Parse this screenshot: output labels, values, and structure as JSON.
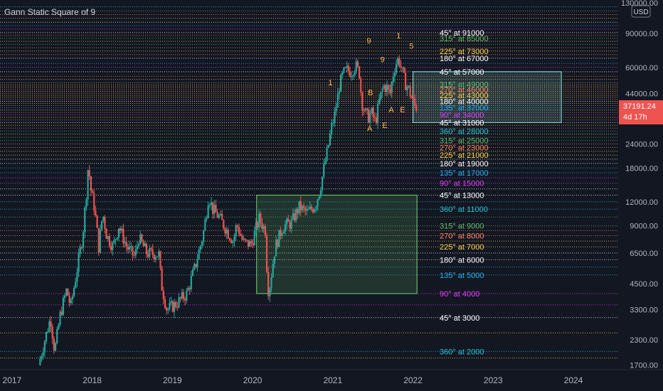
{
  "indicator_title": "Gann Static Square of 9",
  "currency_label": "USD",
  "colors": {
    "background": "#131722",
    "up": "#26a69a",
    "down": "#ef5350",
    "axis_text": "#b2b5be",
    "price_badge": "#ef5350"
  },
  "price_badge": {
    "price": "37191.24",
    "countdown": "4d 17h"
  },
  "chart_data": {
    "type": "candlestick",
    "title": "Gann Static Square of 9",
    "y_scale": "log",
    "ylim": [
      1650,
      130000
    ],
    "x_ticks": [
      "2017",
      "2018",
      "2019",
      "2020",
      "2021",
      "2022",
      "2023",
      "2024"
    ],
    "y_ticks": [
      "130000.00",
      "90000.00",
      "60000.00",
      "44000.00",
      "34000.00",
      "24000.00",
      "18000.00",
      "12000.00",
      "9000.00",
      "6500.00",
      "4500.00",
      "3300.00",
      "2300.00",
      "1700.00"
    ],
    "gann_labels": [
      {
        "angle": "45°",
        "price": 3000,
        "color": "#ffffff"
      },
      {
        "angle": "360°",
        "price": 2000,
        "color": "#26c6da"
      },
      {
        "angle": "90°",
        "price": 4000,
        "color": "#e040fb"
      },
      {
        "angle": "135°",
        "price": 5000,
        "color": "#29b6f6"
      },
      {
        "angle": "180°",
        "price": 6000,
        "color": "#ffffff"
      },
      {
        "angle": "225°",
        "price": 7000,
        "color": "#ffd54f"
      },
      {
        "angle": "270°",
        "price": 8000,
        "color": "#ff8a65"
      },
      {
        "angle": "315°",
        "price": 9000,
        "color": "#66bb6a"
      },
      {
        "angle": "360°",
        "price": 11000,
        "color": "#26c6da"
      },
      {
        "angle": "45°",
        "price": 13000,
        "color": "#ffffff"
      },
      {
        "angle": "90°",
        "price": 15000,
        "color": "#e040fb"
      },
      {
        "angle": "135°",
        "price": 17000,
        "color": "#29b6f6"
      },
      {
        "angle": "180°",
        "price": 19000,
        "color": "#ffffff"
      },
      {
        "angle": "225°",
        "price": 21000,
        "color": "#ffd54f"
      },
      {
        "angle": "270°",
        "price": 23000,
        "color": "#ff8a65"
      },
      {
        "angle": "315°",
        "price": 25000,
        "color": "#66bb6a"
      },
      {
        "angle": "360°",
        "price": 28000,
        "color": "#26c6da"
      },
      {
        "angle": "45°",
        "price": 31000,
        "color": "#ffffff"
      },
      {
        "angle": "90°",
        "price": 34000,
        "color": "#e040fb"
      },
      {
        "angle": "135°",
        "price": 37000,
        "color": "#29b6f6"
      },
      {
        "angle": "180°",
        "price": 40000,
        "color": "#ffffff"
      },
      {
        "angle": "225°",
        "price": 43000,
        "color": "#ffd54f"
      },
      {
        "angle": "270°",
        "price": 46000,
        "color": "#ff8a65"
      },
      {
        "angle": "315°",
        "price": 49000,
        "color": "#66bb6a"
      },
      {
        "angle": "45°",
        "price": 57000,
        "color": "#ffffff"
      },
      {
        "angle": "180°",
        "price": 67000,
        "color": "#ffffff"
      },
      {
        "angle": "225°",
        "price": 73000,
        "color": "#ffd54f"
      },
      {
        "angle": "315°",
        "price": 85000,
        "color": "#66bb6a"
      },
      {
        "angle": "45°",
        "price": 91000,
        "color": "#ffffff"
      }
    ],
    "extra_level_lines": [
      {
        "price": 1850,
        "color": "#ffd54f"
      },
      {
        "price": 2500,
        "color": "#ffd54f"
      },
      {
        "price": 3500,
        "color": "#e040fb"
      },
      {
        "price": 5500,
        "color": "#29b6f6"
      },
      {
        "price": 6500,
        "color": "#ffffff"
      },
      {
        "price": 7500,
        "color": "#ffd54f"
      },
      {
        "price": 8500,
        "color": "#ff8a65"
      },
      {
        "price": 10000,
        "color": "#66bb6a"
      },
      {
        "price": 12000,
        "color": "#26c6da"
      },
      {
        "price": 14000,
        "color": "#ffffff"
      },
      {
        "price": 16000,
        "color": "#e040fb"
      },
      {
        "price": 18000,
        "color": "#29b6f6"
      },
      {
        "price": 20000,
        "color": "#ffffff"
      },
      {
        "price": 22000,
        "color": "#ffd54f"
      },
      {
        "price": 24000,
        "color": "#ff8a65"
      },
      {
        "price": 26000,
        "color": "#66bb6a"
      },
      {
        "price": 27000,
        "color": "#ffd54f"
      },
      {
        "price": 29000,
        "color": "#ff8a65"
      },
      {
        "price": 30000,
        "color": "#ffd54f"
      },
      {
        "price": 32000,
        "color": "#ff8a65"
      },
      {
        "price": 33000,
        "color": "#ffd54f"
      },
      {
        "price": 35000,
        "color": "#ff8a65"
      },
      {
        "price": 36000,
        "color": "#ffd54f"
      },
      {
        "price": 38000,
        "color": "#ff8a65"
      },
      {
        "price": 39000,
        "color": "#ffd54f"
      },
      {
        "price": 41000,
        "color": "#ff8a65"
      },
      {
        "price": 42000,
        "color": "#ffd54f"
      },
      {
        "price": 44000,
        "color": "#ff8a65"
      },
      {
        "price": 45000,
        "color": "#ffd54f"
      },
      {
        "price": 47000,
        "color": "#ff8a65"
      },
      {
        "price": 48000,
        "color": "#ffd54f"
      },
      {
        "price": 50000,
        "color": "#ff8a65"
      },
      {
        "price": 52000,
        "color": "#ffd54f"
      },
      {
        "price": 54000,
        "color": "#ff8a65"
      },
      {
        "price": 60000,
        "color": "#e040fb"
      },
      {
        "price": 63000,
        "color": "#29b6f6"
      },
      {
        "price": 70000,
        "color": "#ff8a65"
      },
      {
        "price": 76000,
        "color": "#ff8a65"
      },
      {
        "price": 79000,
        "color": "#66bb6a"
      },
      {
        "price": 82000,
        "color": "#ffd54f"
      },
      {
        "price": 88000,
        "color": "#ff8a65"
      },
      {
        "price": 95000,
        "color": "#e040fb"
      },
      {
        "price": 99000,
        "color": "#29b6f6"
      },
      {
        "price": 103000,
        "color": "#ffffff"
      },
      {
        "price": 108000,
        "color": "#ffd54f"
      },
      {
        "price": 113000,
        "color": "#ff8a65"
      },
      {
        "price": 118000,
        "color": "#66bb6a"
      },
      {
        "price": 124000,
        "color": "#26c6da"
      }
    ],
    "zones": [
      {
        "start": "2020.05",
        "end": "2022.05",
        "low": 4000,
        "high": 13000,
        "color": "#66bb6a"
      },
      {
        "start": "2022.0",
        "end": "2023.85",
        "low": 31000,
        "high": 57000,
        "color": "#80cbc4"
      }
    ],
    "wave_labels": [
      {
        "text": "1",
        "date": "2020.97",
        "price": 48500
      },
      {
        "text": "9",
        "date": "2021.45",
        "price": 80000
      },
      {
        "text": "9",
        "date": "2021.62",
        "price": 64000
      },
      {
        "text": "1",
        "date": "2021.82",
        "price": 85000
      },
      {
        "text": "5",
        "date": "2021.98",
        "price": 75000
      },
      {
        "text": "B",
        "date": "2021.47",
        "price": 43000
      },
      {
        "text": "A",
        "date": "2021.46",
        "price": 28000
      },
      {
        "text": "E",
        "date": "2021.65",
        "price": 29000
      },
      {
        "text": "A",
        "date": "2021.73",
        "price": 35000
      },
      {
        "text": "E",
        "date": "2021.87",
        "price": 35000
      }
    ],
    "price_path": [
      [
        "2017.35",
        1700
      ],
      [
        "2017.45",
        2500
      ],
      [
        "2017.5",
        3000
      ],
      [
        "2017.55",
        2000
      ],
      [
        "2017.62",
        3100
      ],
      [
        "2017.7",
        4200
      ],
      [
        "2017.75",
        3400
      ],
      [
        "2017.8",
        4500
      ],
      [
        "2017.85",
        6000
      ],
      [
        "2017.9",
        8000
      ],
      [
        "2017.95",
        14000
      ],
      [
        "2017.97",
        19000
      ],
      [
        "2018.0",
        14000
      ],
      [
        "2018.05",
        11000
      ],
      [
        "2018.1",
        7000
      ],
      [
        "2018.15",
        10500
      ],
      [
        "2018.2",
        8000
      ],
      [
        "2018.28",
        7000
      ],
      [
        "2018.35",
        9000
      ],
      [
        "2018.45",
        7000
      ],
      [
        "2018.55",
        6200
      ],
      [
        "2018.6",
        7800
      ],
      [
        "2018.7",
        6500
      ],
      [
        "2018.85",
        6400
      ],
      [
        "2018.88",
        4500
      ],
      [
        "2018.95",
        3300
      ],
      [
        "2019.05",
        3500
      ],
      [
        "2019.2",
        4000
      ],
      [
        "2019.3",
        5500
      ],
      [
        "2019.4",
        8000
      ],
      [
        "2019.45",
        11000
      ],
      [
        "2019.47",
        13000
      ],
      [
        "2019.52",
        11000
      ],
      [
        "2019.6",
        10000
      ],
      [
        "2019.7",
        8500
      ],
      [
        "2019.78",
        7500
      ],
      [
        "2019.82",
        9200
      ],
      [
        "2019.9",
        7400
      ],
      [
        "2020.0",
        7200
      ],
      [
        "2020.1",
        9800
      ],
      [
        "2020.18",
        8500
      ],
      [
        "2020.2",
        5000
      ],
      [
        "2020.22",
        4000
      ],
      [
        "2020.3",
        7000
      ],
      [
        "2020.4",
        9000
      ],
      [
        "2020.5",
        9300
      ],
      [
        "2020.6",
        11300
      ],
      [
        "2020.7",
        10500
      ],
      [
        "2020.8",
        11500
      ],
      [
        "2020.85",
        13500
      ],
      [
        "2020.88",
        15500
      ],
      [
        "2020.92",
        19000
      ],
      [
        "2020.96",
        23000
      ],
      [
        "2021.0",
        29000
      ],
      [
        "2021.05",
        35000
      ],
      [
        "2021.1",
        48000
      ],
      [
        "2021.15",
        56000
      ],
      [
        "2021.2",
        58000
      ],
      [
        "2021.25",
        57000
      ],
      [
        "2021.3",
        62000
      ],
      [
        "2021.35",
        56000
      ],
      [
        "2021.38",
        40000
      ],
      [
        "2021.42",
        35000
      ],
      [
        "2021.46",
        33000
      ],
      [
        "2021.5",
        35000
      ],
      [
        "2021.55",
        31000
      ],
      [
        "2021.6",
        40000
      ],
      [
        "2021.65",
        48000
      ],
      [
        "2021.7",
        47000
      ],
      [
        "2021.73",
        43000
      ],
      [
        "2021.77",
        55000
      ],
      [
        "2021.8",
        62000
      ],
      [
        "2021.84",
        67000
      ],
      [
        "2021.88",
        58000
      ],
      [
        "2021.92",
        50000
      ],
      [
        "2021.96",
        47000
      ],
      [
        "2022.0",
        42000
      ],
      [
        "2022.05",
        37191
      ]
    ]
  }
}
